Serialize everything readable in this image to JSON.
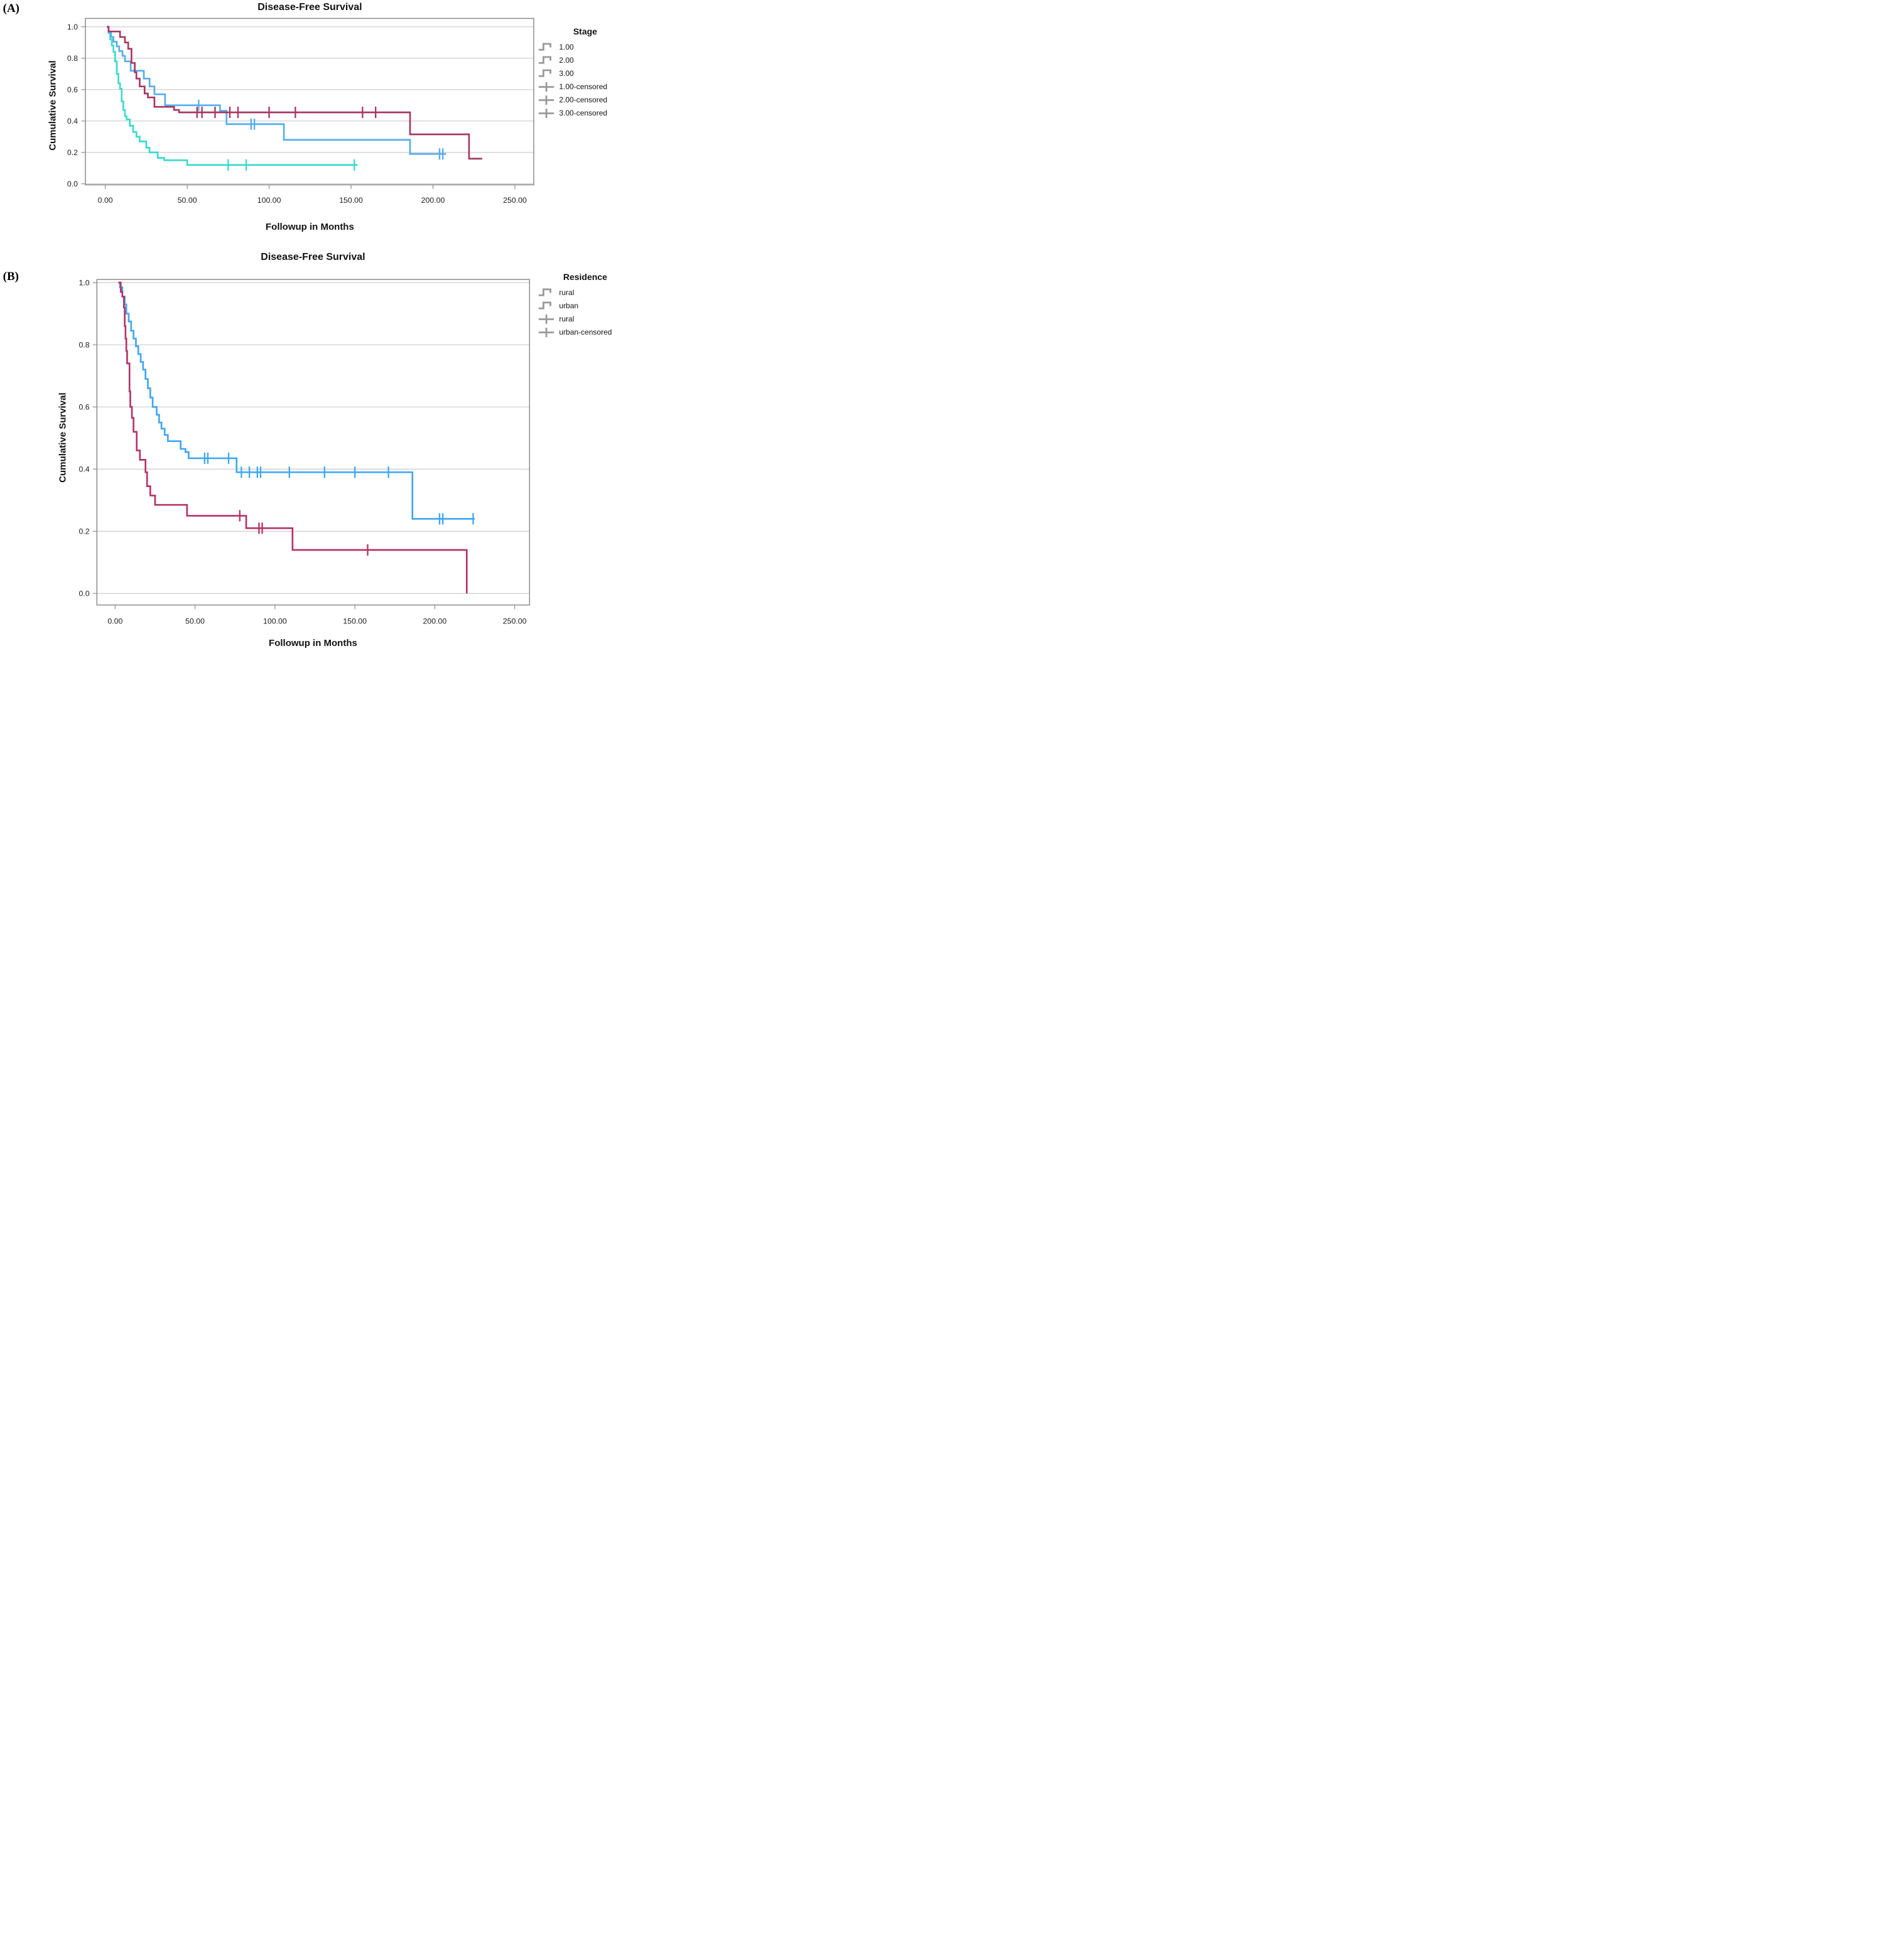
{
  "chart_data": [
    {
      "type": "line",
      "subtype": "kaplan_meier_step",
      "letter": "(A)",
      "title": "Disease-Free Survival",
      "xlabel": "Followup in Months",
      "ylabel": "Cumulative Survival",
      "x_ticks": [
        "0.00",
        "50.00",
        "100.00",
        "150.00",
        "200.00",
        "250.00"
      ],
      "y_ticks": [
        "0.0",
        "0.2",
        "0.4",
        "0.6",
        "0.8",
        "1.0"
      ],
      "xlim": [
        0,
        250
      ],
      "ylim": [
        0,
        1
      ],
      "grid": "horizontal",
      "legend": {
        "title": "Stage",
        "position": "right",
        "items": [
          {
            "label": "1.00",
            "marker": "line",
            "color": "#58ACEE"
          },
          {
            "label": "2.00",
            "marker": "line",
            "color": "#A63763"
          },
          {
            "label": "3.00",
            "marker": "line",
            "color": "#3CD9CE"
          },
          {
            "label": "1.00-censored",
            "marker": "plus",
            "color": "#58ACEE"
          },
          {
            "label": "2.00-censored",
            "marker": "plus",
            "color": "#A63763"
          },
          {
            "label": "3.00-censored",
            "marker": "plus",
            "color": "#3CD9CE"
          }
        ]
      },
      "series": [
        {
          "name": "1.00",
          "color": "#58ACEE",
          "end": 208,
          "censored": [
            57,
            89,
            91,
            204,
            206
          ],
          "points": [
            [
              1,
              1.0
            ],
            [
              2,
              0.97
            ],
            [
              3.5,
              0.935
            ],
            [
              5,
              0.905
            ],
            [
              7,
              0.875
            ],
            [
              8.5,
              0.845
            ],
            [
              10.5,
              0.815
            ],
            [
              12,
              0.78
            ],
            [
              15.5,
              0.72
            ],
            [
              23.5,
              0.67
            ],
            [
              27,
              0.62
            ],
            [
              30,
              0.57
            ],
            [
              36.5,
              0.5
            ],
            [
              70,
              0.465
            ],
            [
              74,
              0.38
            ],
            [
              109,
              0.28
            ],
            [
              186,
              0.19
            ]
          ]
        },
        {
          "name": "2.00",
          "color": "#A63763",
          "end": 230,
          "censored": [
            56,
            59,
            67,
            76,
            81,
            100,
            116,
            157,
            165
          ],
          "points": [
            [
              1,
              1.0
            ],
            [
              2,
              0.97
            ],
            [
              9,
              0.935
            ],
            [
              12,
              0.9
            ],
            [
              14,
              0.86
            ],
            [
              16,
              0.77
            ],
            [
              18,
              0.71
            ],
            [
              19,
              0.67
            ],
            [
              21,
              0.62
            ],
            [
              24,
              0.575
            ],
            [
              26,
              0.55
            ],
            [
              30,
              0.49
            ],
            [
              42,
              0.47
            ],
            [
              45,
              0.455
            ],
            [
              186,
              0.315
            ],
            [
              222,
              0.16
            ]
          ]
        },
        {
          "name": "3.00",
          "color": "#3CD9CE",
          "end": 154,
          "censored": [
            75,
            86,
            152
          ],
          "points": [
            [
              1,
              1.0
            ],
            [
              2,
              0.96
            ],
            [
              3,
              0.92
            ],
            [
              4,
              0.88
            ],
            [
              5,
              0.84
            ],
            [
              6,
              0.78
            ],
            [
              7,
              0.7
            ],
            [
              8,
              0.64
            ],
            [
              9,
              0.605
            ],
            [
              10,
              0.525
            ],
            [
              11,
              0.47
            ],
            [
              12,
              0.43
            ],
            [
              13,
              0.41
            ],
            [
              15,
              0.37
            ],
            [
              17,
              0.33
            ],
            [
              19,
              0.3
            ],
            [
              21,
              0.27
            ],
            [
              25,
              0.23
            ],
            [
              27,
              0.2
            ],
            [
              32,
              0.165
            ],
            [
              36,
              0.15
            ],
            [
              50,
              0.12
            ]
          ]
        }
      ]
    },
    {
      "type": "line",
      "subtype": "kaplan_meier_step",
      "letter": "(B)",
      "title": "Disease-Free Survival",
      "xlabel": "Followup in Months",
      "ylabel": "Cumulative Survival",
      "x_ticks": [
        "0.00",
        "50.00",
        "100.00",
        "150.00",
        "200.00",
        "250.00"
      ],
      "y_ticks": [
        "0.0",
        "0.2",
        "0.4",
        "0.6",
        "0.8",
        "1.0"
      ],
      "xlim": [
        0,
        250
      ],
      "ylim": [
        0,
        1
      ],
      "grid": "horizontal",
      "legend": {
        "title": "Residence",
        "position": "right",
        "items": [
          {
            "label": "rural",
            "marker": "line",
            "color": "#3FA6F4"
          },
          {
            "label": "urban",
            "marker": "line",
            "color": "#B53366"
          },
          {
            "label": "rural",
            "marker": "plus",
            "color": "#3FA6F4"
          },
          {
            "label": "urban-censored",
            "marker": "plus",
            "color": "#B53366"
          }
        ]
      },
      "series": [
        {
          "name": "rural",
          "color": "#3FA6F4",
          "end": 225,
          "censored": [
            56,
            58,
            71,
            79,
            84,
            89,
            91,
            109,
            131,
            150,
            171,
            203,
            205,
            224
          ],
          "points": [
            [
              2,
              1.0
            ],
            [
              3,
              0.985
            ],
            [
              4.5,
              0.955
            ],
            [
              6,
              0.93
            ],
            [
              7,
              0.9
            ],
            [
              8.5,
              0.875
            ],
            [
              10,
              0.845
            ],
            [
              11.5,
              0.82
            ],
            [
              13,
              0.795
            ],
            [
              14.5,
              0.77
            ],
            [
              16,
              0.745
            ],
            [
              17.5,
              0.72
            ],
            [
              19,
              0.69
            ],
            [
              20.5,
              0.66
            ],
            [
              22,
              0.63
            ],
            [
              23.5,
              0.6
            ],
            [
              26,
              0.575
            ],
            [
              27.5,
              0.55
            ],
            [
              29,
              0.53
            ],
            [
              31,
              0.51
            ],
            [
              33,
              0.49
            ],
            [
              41,
              0.465
            ],
            [
              44,
              0.455
            ],
            [
              46,
              0.435
            ],
            [
              76,
              0.39
            ],
            [
              186,
              0.24
            ]
          ]
        },
        {
          "name": "urban",
          "color": "#B53366",
          "end": 220,
          "censored": [
            78,
            90,
            92,
            158
          ],
          "points": [
            [
              2,
              1.0
            ],
            [
              3.5,
              0.97
            ],
            [
              4.5,
              0.955
            ],
            [
              5.5,
              0.92
            ],
            [
              6,
              0.86
            ],
            [
              6.5,
              0.82
            ],
            [
              7,
              0.78
            ],
            [
              7.5,
              0.74
            ],
            [
              9,
              0.65
            ],
            [
              9.5,
              0.6
            ],
            [
              10.5,
              0.565
            ],
            [
              11.5,
              0.52
            ],
            [
              13.5,
              0.46
            ],
            [
              15.5,
              0.43
            ],
            [
              19,
              0.39
            ],
            [
              20,
              0.345
            ],
            [
              22,
              0.315
            ],
            [
              25,
              0.285
            ],
            [
              45,
              0.25
            ],
            [
              82,
              0.21
            ],
            [
              111,
              0.14
            ],
            [
              220,
              0.0
            ]
          ]
        }
      ]
    }
  ]
}
